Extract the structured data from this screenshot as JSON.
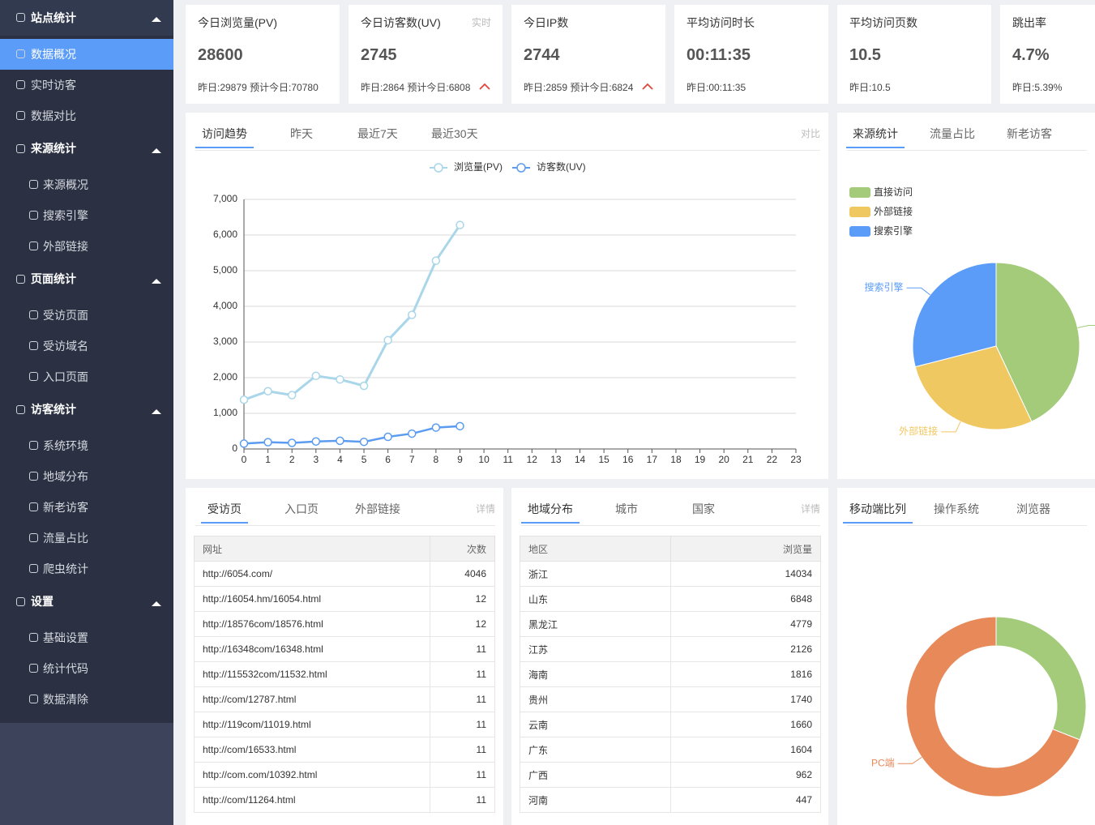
{
  "sidebar": {
    "groups": [
      {
        "title": "站点统计",
        "items": [
          "数据概况",
          "实时访客",
          "数据对比"
        ]
      },
      {
        "title": "来源统计",
        "items": [
          "来源概况",
          "搜索引擎",
          "外部链接"
        ]
      },
      {
        "title": "页面统计",
        "items": [
          "受访页面",
          "受访域名",
          "入口页面"
        ]
      },
      {
        "title": "访客统计",
        "items": [
          "系统环境",
          "地域分布",
          "新老访客",
          "流量占比",
          "爬虫统计"
        ]
      },
      {
        "title": "设置",
        "items": [
          "基础设置",
          "统计代码",
          "数据清除"
        ]
      }
    ]
  },
  "cards": [
    {
      "title": "今日浏览量(PV)",
      "value": "28600",
      "sub": "昨日:29879 预计今日:70780"
    },
    {
      "title": "今日访客数(UV)",
      "badge": "实时",
      "value": "2745",
      "sub": "昨日:2864 预计今日:6808",
      "trend": "up"
    },
    {
      "title": "今日IP数",
      "value": "2744",
      "sub": "昨日:2859 预计今日:6824",
      "trend": "up"
    },
    {
      "title": "平均访问时长",
      "value": "00:11:35",
      "sub": "昨日:00:11:35"
    },
    {
      "title": "平均访问页数",
      "value": "10.5",
      "sub": "昨日:10.5"
    },
    {
      "title": "跳出率",
      "value": "4.7%",
      "sub": "昨日:5.39%"
    }
  ],
  "trend": {
    "tabs": [
      "访问趋势",
      "昨天",
      "最近7天",
      "最近30天"
    ],
    "link": "对比"
  },
  "source": {
    "tabs": [
      "来源统计",
      "流量占比",
      "新老访客"
    ]
  },
  "mobile": {
    "tabs": [
      "移动端比列",
      "操作系统",
      "浏览器"
    ]
  },
  "pages": {
    "tabs": [
      "受访页",
      "入口页",
      "外部链接"
    ],
    "link": "详情",
    "table": {
      "header": [
        "网址",
        "次数"
      ],
      "rows": [
        [
          "http://6054.com/",
          "4046"
        ],
        [
          "http://16054.hm/16054.html",
          "12"
        ],
        [
          "http://18576com/18576.html",
          "12"
        ],
        [
          "http://16348com/16348.html",
          "11"
        ],
        [
          "http://115532com/11532.html",
          "11"
        ],
        [
          "http://com/12787.html",
          "11"
        ],
        [
          "http://119com/11019.html",
          "11"
        ],
        [
          "http://com/16533.html",
          "11"
        ],
        [
          "http://com.com/10392.html",
          "11"
        ],
        [
          "http://com/11264.html",
          "11"
        ]
      ]
    }
  },
  "regions": {
    "tabs": [
      "地域分布",
      "城市",
      "国家"
    ],
    "link": "详情",
    "table": {
      "header": [
        "地区",
        "浏览量"
      ],
      "rows": [
        [
          "浙江",
          "14034"
        ],
        [
          "山东",
          "6848"
        ],
        [
          "黑龙江",
          "4779"
        ],
        [
          "江苏",
          "2126"
        ],
        [
          "海南",
          "1816"
        ],
        [
          "贵州",
          "1740"
        ],
        [
          "云南",
          "1660"
        ],
        [
          "广东",
          "1604"
        ],
        [
          "广西",
          "962"
        ],
        [
          "河南",
          "447"
        ]
      ]
    }
  },
  "chart_data": [
    {
      "type": "line",
      "x": [
        0,
        1,
        2,
        3,
        4,
        5,
        6,
        7,
        8,
        9
      ],
      "xlim": [
        0,
        23
      ],
      "xticks": [
        0,
        1,
        2,
        3,
        4,
        5,
        6,
        7,
        8,
        9,
        10,
        11,
        12,
        13,
        14,
        15,
        16,
        17,
        18,
        19,
        20,
        21,
        22,
        23
      ],
      "ylim": [
        0,
        7000
      ],
      "yticks": [
        0,
        {
          "value": 1000,
          "label": "1,000"
        },
        {
          "value": 2000,
          "label": "2,000"
        },
        {
          "value": 3000,
          "label": "3,000"
        },
        {
          "value": 4000,
          "label": "4,000"
        },
        {
          "value": 5000,
          "label": "5,000"
        },
        {
          "value": 6000,
          "label": "6,000"
        },
        {
          "value": 7000,
          "label": "7,000"
        }
      ],
      "grid": true,
      "series": [
        {
          "name": "浏览量(PV)",
          "color": "#a9d6e8",
          "values": [
            1380,
            1620,
            1510,
            2050,
            1950,
            1770,
            3050,
            3760,
            5280,
            6280
          ]
        },
        {
          "name": "访客数(UV)",
          "color": "#5b9cf0",
          "values": [
            150,
            190,
            170,
            210,
            230,
            200,
            340,
            430,
            600,
            640
          ]
        }
      ]
    },
    {
      "type": "pie",
      "categories": [
        "直接访问",
        "外部链接",
        "搜索引擎"
      ],
      "values": [
        43,
        28,
        29
      ],
      "colors": [
        "#a3cb7a",
        "#f0c862",
        "#5b9cf8"
      ]
    },
    {
      "type": "donut",
      "categories": [
        null,
        "PC端"
      ],
      "values": [
        31,
        69
      ],
      "colors": [
        "#a3cb7a",
        "#e8895a"
      ]
    }
  ]
}
